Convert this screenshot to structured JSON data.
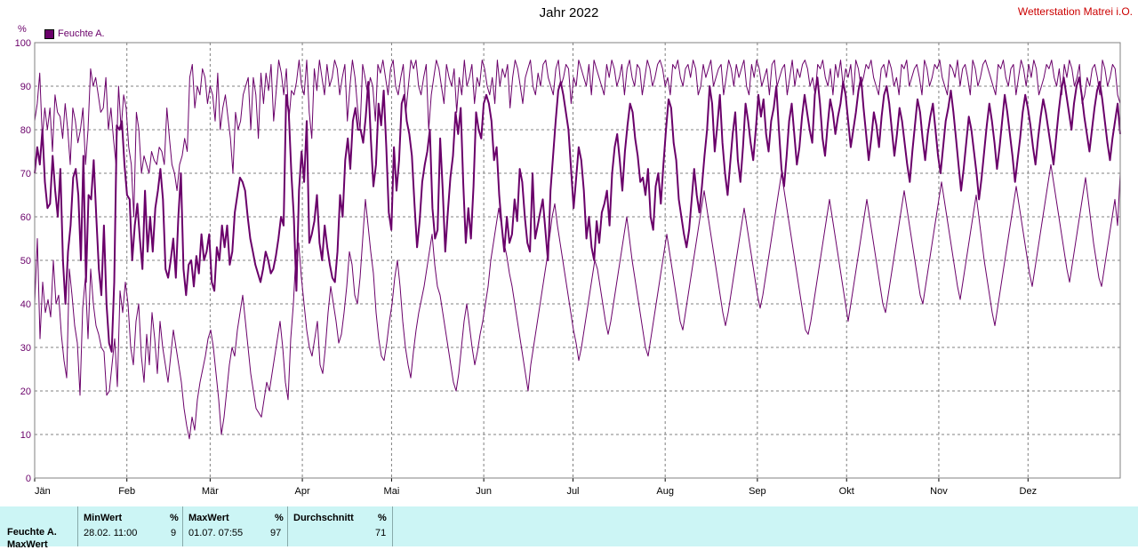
{
  "chart_data": {
    "type": "line",
    "title": "Jahr 2022",
    "ylabel": "%",
    "ylim": [
      0,
      100
    ],
    "yticks": [
      0,
      10,
      20,
      30,
      40,
      50,
      60,
      70,
      80,
      90,
      100
    ],
    "xticks": [
      "Jän",
      "Feb",
      "Mär",
      "Apr",
      "Mai",
      "Jun",
      "Jul",
      "Aug",
      "Sep",
      "Okt",
      "Nov",
      "Dez"
    ],
    "legend": "top-left",
    "grid": true,
    "color": "#6a006a",
    "series": [
      {
        "name": "Feuchte A.",
        "role": "max",
        "values": [
          82,
          86,
          93,
          78,
          85,
          80,
          85,
          75,
          88,
          84,
          83,
          78,
          86,
          80,
          72,
          85,
          82,
          77,
          80,
          85,
          72,
          80,
          94,
          90,
          92,
          88,
          84,
          85,
          92,
          80,
          85,
          78,
          72,
          90,
          80,
          88,
          85,
          76,
          72,
          60,
          84,
          80,
          70,
          74,
          72,
          70,
          75,
          73,
          72,
          76,
          75,
          72,
          85,
          78,
          72,
          70,
          66,
          72,
          74,
          78,
          75,
          92,
          95,
          85,
          90,
          88,
          94,
          92,
          86,
          90,
          88,
          82,
          93,
          80,
          85,
          88,
          83,
          78,
          70,
          84,
          80,
          82,
          88,
          90,
          92,
          80,
          92,
          88,
          78,
          93,
          86,
          93,
          89,
          95,
          82,
          89,
          96,
          93,
          88,
          94,
          82,
          89,
          88,
          91,
          96,
          90,
          88,
          96,
          84,
          78,
          94,
          89,
          96,
          92,
          88,
          95,
          90,
          92,
          96,
          94,
          88,
          92,
          95,
          82,
          90,
          96,
          92,
          85,
          80,
          95,
          92,
          88,
          92,
          90,
          82,
          95,
          93,
          96,
          92,
          88,
          94,
          96,
          90,
          88,
          92,
          95,
          84,
          90,
          96,
          94,
          96,
          90,
          88,
          92,
          95,
          80,
          88,
          92,
          96,
          94,
          90,
          86,
          95,
          92,
          90,
          94,
          84,
          92,
          88,
          96,
          90,
          92,
          95,
          86,
          92,
          90,
          96,
          94,
          90,
          88,
          92,
          86,
          96,
          90,
          94,
          92,
          95,
          85,
          92,
          96,
          94,
          90,
          86,
          92,
          94,
          96,
          90,
          88,
          93,
          90,
          95,
          96,
          92,
          90,
          88,
          94,
          96,
          90,
          92,
          95,
          94,
          86,
          92,
          90,
          96,
          94,
          92,
          90,
          95,
          88,
          96,
          94,
          92,
          90,
          88,
          95,
          92,
          96,
          94,
          90,
          92,
          95,
          88,
          94,
          96,
          92,
          90,
          95,
          94,
          88,
          92,
          96,
          94,
          90,
          92,
          95,
          96,
          94,
          90,
          92,
          88,
          95,
          94,
          96,
          92,
          90,
          94,
          95,
          92,
          96,
          94,
          88,
          90,
          95,
          92,
          94,
          96,
          90,
          92,
          94,
          95,
          88,
          92,
          96,
          94,
          90,
          95,
          92,
          94,
          96,
          90,
          88,
          95,
          92,
          96,
          94,
          90,
          92,
          94,
          88,
          95,
          96,
          90,
          92,
          94,
          95,
          88,
          92,
          96,
          90,
          94,
          92,
          95,
          96,
          94,
          90,
          92,
          88,
          95,
          94,
          96,
          92,
          90,
          94,
          88,
          95,
          92,
          96,
          90,
          94,
          92,
          95,
          88,
          96,
          94,
          90,
          92,
          95,
          94,
          96,
          92,
          90,
          88,
          94,
          95,
          92,
          96,
          94,
          90,
          92,
          88,
          95,
          94,
          96,
          90,
          92,
          94,
          95,
          92,
          88,
          96,
          94,
          90,
          92,
          95,
          94,
          96,
          92,
          90,
          88,
          95,
          94,
          92,
          96,
          90,
          94,
          95,
          92,
          88,
          96,
          94,
          90,
          92,
          95,
          96,
          94,
          92,
          90,
          88,
          95,
          94,
          96,
          92,
          90,
          94,
          95,
          88,
          92,
          96,
          94,
          90,
          95,
          92,
          96,
          94,
          88,
          90,
          92,
          95,
          94,
          96,
          92,
          90,
          94,
          88,
          95,
          92,
          96,
          94,
          90,
          92,
          95,
          86,
          88,
          92,
          90,
          94,
          95,
          92,
          88,
          96,
          94,
          90,
          92,
          95,
          94,
          88,
          86
        ]
      },
      {
        "name": "Feuchte A.",
        "role": "mean",
        "values": [
          70,
          76,
          72,
          80,
          68,
          62,
          63,
          74,
          66,
          60,
          71,
          50,
          40,
          52,
          58,
          69,
          71,
          65,
          50,
          74,
          45,
          65,
          64,
          73,
          60,
          48,
          42,
          58,
          40,
          31,
          29,
          45,
          81,
          80,
          82,
          72,
          65,
          64,
          50,
          58,
          63,
          55,
          48,
          66,
          52,
          60,
          52,
          62,
          66,
          71,
          64,
          48,
          46,
          50,
          55,
          46,
          60,
          70,
          48,
          42,
          49,
          50,
          44,
          51,
          47,
          56,
          50,
          52,
          56,
          45,
          43,
          53,
          50,
          58,
          53,
          58,
          49,
          52,
          61,
          65,
          69,
          68,
          66,
          60,
          55,
          52,
          49,
          47,
          45,
          48,
          52,
          50,
          47,
          48,
          51,
          55,
          60,
          58,
          88,
          84,
          70,
          60,
          43,
          66,
          75,
          68,
          82,
          54,
          56,
          59,
          65,
          54,
          50,
          58,
          53,
          49,
          46,
          45,
          52,
          65,
          60,
          73,
          78,
          71,
          82,
          85,
          80,
          80,
          77,
          83,
          91,
          78,
          67,
          72,
          86,
          81,
          89,
          76,
          61,
          57,
          76,
          66,
          73,
          86,
          88,
          82,
          79,
          74,
          63,
          53,
          59,
          68,
          72,
          75,
          80,
          62,
          55,
          57,
          78,
          66,
          52,
          61,
          69,
          74,
          84,
          79,
          85,
          68,
          54,
          62,
          55,
          67,
          84,
          80,
          78,
          86,
          88,
          86,
          82,
          73,
          76,
          65,
          58,
          52,
          60,
          54,
          56,
          64,
          59,
          71,
          68,
          60,
          54,
          52,
          70,
          55,
          58,
          61,
          64,
          57,
          50,
          66,
          74,
          82,
          89,
          91,
          88,
          84,
          80,
          71,
          62,
          69,
          76,
          73,
          66,
          55,
          60,
          53,
          50,
          59,
          54,
          61,
          63,
          66,
          58,
          70,
          76,
          79,
          73,
          66,
          75,
          81,
          86,
          84,
          78,
          74,
          68,
          69,
          65,
          71,
          60,
          57,
          67,
          70,
          63,
          72,
          80,
          87,
          85,
          77,
          73,
          64,
          60,
          56,
          53,
          57,
          64,
          71,
          65,
          61,
          67,
          74,
          80,
          90,
          86,
          75,
          81,
          88,
          77,
          70,
          65,
          72,
          79,
          84,
          73,
          68,
          76,
          86,
          82,
          77,
          73,
          80,
          88,
          83,
          87,
          79,
          75,
          82,
          85,
          90,
          80,
          71,
          67,
          74,
          82,
          86,
          79,
          72,
          76,
          83,
          88,
          84,
          80,
          77,
          88,
          92,
          86,
          78,
          74,
          81,
          87,
          84,
          79,
          83,
          86,
          91,
          88,
          82,
          76,
          80,
          84,
          89,
          92,
          85,
          79,
          73,
          78,
          84,
          81,
          76,
          83,
          88,
          90,
          86,
          80,
          74,
          79,
          85,
          82,
          77,
          72,
          68,
          75,
          81,
          87,
          84,
          78,
          73,
          79,
          83,
          86,
          80,
          74,
          70,
          76,
          82,
          85,
          89,
          84,
          78,
          72,
          66,
          71,
          77,
          83,
          80,
          75,
          70,
          64,
          69,
          75,
          81,
          86,
          82,
          77,
          71,
          76,
          82,
          88,
          84,
          79,
          74,
          68,
          73,
          78,
          84,
          88,
          85,
          81,
          76,
          72,
          78,
          83,
          87,
          84,
          80,
          76,
          72,
          78,
          84,
          89,
          92,
          88,
          84,
          80,
          86,
          90,
          92,
          88,
          83,
          79,
          75,
          80,
          85,
          89,
          91,
          87,
          82,
          77,
          73,
          78,
          82,
          86,
          79
        ]
      },
      {
        "name": "Feuchte A.",
        "role": "min",
        "values": [
          40,
          55,
          32,
          45,
          38,
          41,
          37,
          50,
          40,
          42,
          33,
          27,
          23,
          48,
          42,
          35,
          31,
          19,
          39,
          46,
          32,
          48,
          40,
          35,
          33,
          30,
          29,
          19,
          20,
          26,
          32,
          21,
          43,
          38,
          45,
          40,
          30,
          26,
          36,
          40,
          28,
          22,
          33,
          26,
          38,
          32,
          24,
          36,
          30,
          26,
          22,
          28,
          34,
          30,
          26,
          22,
          16,
          12,
          9,
          14,
          11,
          18,
          22,
          25,
          28,
          32,
          34,
          30,
          24,
          18,
          10,
          14,
          20,
          26,
          30,
          28,
          34,
          38,
          42,
          36,
          30,
          24,
          20,
          16,
          15,
          14,
          18,
          22,
          20,
          24,
          28,
          32,
          36,
          30,
          22,
          18,
          32,
          40,
          52,
          54,
          46,
          40,
          34,
          30,
          28,
          32,
          36,
          26,
          24,
          30,
          38,
          44,
          40,
          36,
          31,
          33,
          38,
          44,
          52,
          49,
          42,
          40,
          46,
          55,
          64,
          58,
          52,
          47,
          38,
          32,
          28,
          27,
          31,
          36,
          40,
          46,
          50,
          44,
          36,
          30,
          26,
          23,
          29,
          34,
          38,
          41,
          44,
          48,
          52,
          56,
          49,
          44,
          42,
          38,
          34,
          30,
          26,
          22,
          20,
          24,
          30,
          36,
          40,
          35,
          30,
          26,
          29,
          33,
          36,
          40,
          44,
          50,
          54,
          58,
          62,
          58,
          54,
          51,
          47,
          44,
          40,
          36,
          32,
          28,
          24,
          20,
          26,
          30,
          34,
          38,
          42,
          46,
          50,
          55,
          60,
          63,
          58,
          54,
          50,
          46,
          42,
          38,
          34,
          31,
          27,
          30,
          34,
          38,
          42,
          46,
          50,
          48,
          44,
          40,
          36,
          33,
          36,
          40,
          44,
          48,
          52,
          56,
          60,
          55,
          50,
          46,
          42,
          38,
          34,
          30,
          28,
          32,
          36,
          40,
          44,
          48,
          52,
          56,
          52,
          48,
          44,
          40,
          36,
          34,
          38,
          42,
          46,
          50,
          54,
          58,
          62,
          66,
          62,
          58,
          54,
          50,
          46,
          42,
          38,
          35,
          38,
          42,
          46,
          50,
          54,
          58,
          62,
          58,
          54,
          50,
          46,
          42,
          39,
          42,
          46,
          50,
          54,
          58,
          62,
          66,
          70,
          66,
          62,
          58,
          54,
          50,
          46,
          42,
          38,
          34,
          33,
          36,
          40,
          44,
          48,
          52,
          56,
          60,
          64,
          60,
          56,
          52,
          48,
          44,
          40,
          36,
          40,
          44,
          48,
          52,
          56,
          60,
          64,
          60,
          56,
          52,
          48,
          44,
          40,
          38,
          42,
          46,
          50,
          54,
          58,
          62,
          66,
          62,
          58,
          54,
          50,
          46,
          42,
          40,
          44,
          48,
          52,
          56,
          60,
          64,
          68,
          64,
          60,
          56,
          52,
          48,
          44,
          41,
          45,
          49,
          53,
          57,
          61,
          65,
          60,
          55,
          50,
          46,
          42,
          38,
          35,
          39,
          43,
          47,
          51,
          55,
          59,
          63,
          67,
          63,
          59,
          55,
          51,
          47,
          44,
          48,
          52,
          56,
          60,
          64,
          68,
          72,
          68,
          64,
          60,
          56,
          52,
          48,
          45,
          49,
          53,
          57,
          61,
          65,
          69,
          64,
          59,
          54,
          50,
          46,
          44,
          48,
          52,
          56,
          60,
          64,
          58,
          70
        ]
      }
    ]
  },
  "header": {
    "title": "Jahr 2022",
    "station": "Wetterstation Matrei i.O.",
    "unit": "%",
    "legend_label": "Feuchte A."
  },
  "stats": {
    "row_label": "Feuchte A.",
    "row_label_2": "MaxWert",
    "min": {
      "label": "MinWert",
      "unit": "%",
      "datetime": "28.02.  11:00",
      "value": "9"
    },
    "max": {
      "label": "MaxWert",
      "unit": "%",
      "datetime": "01.07.  07:55",
      "value": "97"
    },
    "avg": {
      "label": "Durchschnitt",
      "unit": "%",
      "value": "71"
    }
  }
}
